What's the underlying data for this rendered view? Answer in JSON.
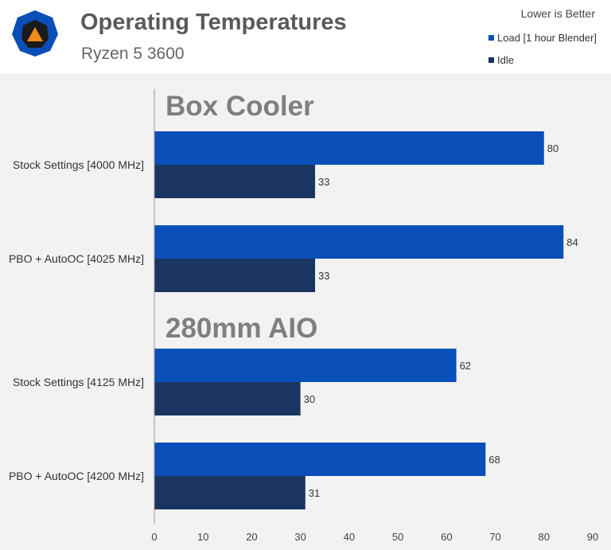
{
  "header": {
    "title": "Operating Temperatures",
    "subtitle": "Ryzen 5 3600",
    "note": "Lower is Better",
    "logo_icon": "techspot-logo-icon"
  },
  "colors": {
    "load": "#0a4fb8",
    "idle": "#1a3561",
    "background": "#f2f2f2",
    "header_bg": "#ffffff",
    "group_title": "#7f7f7f"
  },
  "chart_data": {
    "type": "bar",
    "orientation": "horizontal",
    "title": "Operating Temperatures",
    "subtitle": "Ryzen 5 3600",
    "xlim": [
      0,
      90
    ],
    "x_ticks": [
      0,
      10,
      20,
      30,
      40,
      50,
      60,
      70,
      80,
      90
    ],
    "grid": false,
    "legend_position": "top-right",
    "series": [
      {
        "name": "Load [1 hour Blender]",
        "color": "#0a4fb8"
      },
      {
        "name": "Idle",
        "color": "#1a3561"
      }
    ],
    "groups": [
      {
        "title": "Box Cooler",
        "categories": [
          {
            "label": "Stock Settings [4000 MHz]",
            "values": [
              80,
              33
            ]
          },
          {
            "label": "PBO + AutoOC [4025 MHz]",
            "values": [
              84,
              33
            ]
          }
        ]
      },
      {
        "title": "280mm AIO",
        "categories": [
          {
            "label": "Stock Settings [4125 MHz]",
            "values": [
              62,
              30
            ]
          },
          {
            "label": "PBO + AutoOC [4200 MHz]",
            "values": [
              68,
              31
            ]
          }
        ]
      }
    ]
  }
}
